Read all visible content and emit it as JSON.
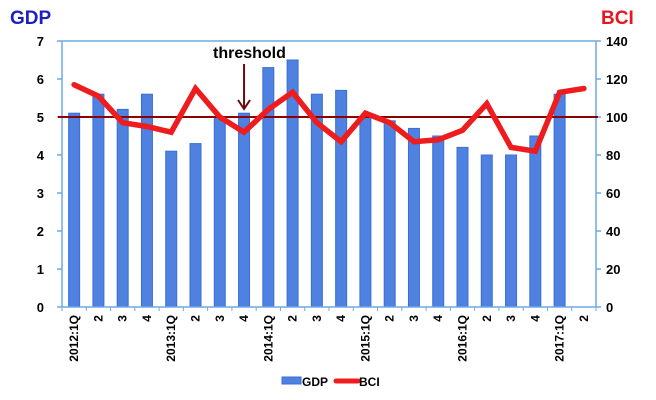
{
  "chart_data": {
    "type": "bar+line",
    "title": "",
    "left_axis_title": "GDP",
    "right_axis_title": "BCI",
    "left_axis_title_color": "#1f1fbf",
    "right_axis_title_color": "#e8141e",
    "xlabel": "",
    "ylabel_left": "GDP",
    "ylabel_right": "BCI",
    "ylim_left": [
      0,
      7
    ],
    "ylim_right": [
      0,
      140
    ],
    "left_ticks": [
      0,
      1,
      2,
      3,
      4,
      5,
      6,
      7
    ],
    "right_ticks": [
      0,
      20,
      40,
      60,
      80,
      100,
      120,
      140
    ],
    "categories": [
      "2012:1Q",
      "2",
      "3",
      "4",
      "2013:1Q",
      "2",
      "3",
      "4",
      "2014:1Q",
      "2",
      "3",
      "4",
      "2015:1Q",
      "2",
      "3",
      "4",
      "2016:1Q",
      "2",
      "3",
      "4",
      "2017:1Q",
      "2"
    ],
    "series": [
      {
        "name": "GDP",
        "type": "bar",
        "axis": "left",
        "color": "#4f81e0",
        "values": [
          5.1,
          5.6,
          5.2,
          5.6,
          4.1,
          4.3,
          5.0,
          5.1,
          6.3,
          6.5,
          5.6,
          5.7,
          5.0,
          4.9,
          4.7,
          4.5,
          4.2,
          4.0,
          4.0,
          4.5,
          5.6,
          null
        ]
      },
      {
        "name": "BCI",
        "type": "line",
        "axis": "right",
        "color": "#ee1c1c",
        "values": [
          117,
          111,
          97,
          95,
          92,
          115,
          100,
          92,
          104,
          113,
          97,
          87,
          102,
          97,
          87,
          88,
          93,
          107,
          84,
          82,
          113,
          115
        ]
      }
    ],
    "reference_line": {
      "axis": "right",
      "value": 100,
      "color": "#8b0000"
    },
    "annotations": [
      {
        "text": "threshold",
        "arrow_to_category_index": 7
      }
    ],
    "legend": {
      "position": "bottom",
      "entries": [
        "GDP",
        "BCI"
      ]
    },
    "grid": false,
    "axis_color": "#6fa8e8"
  }
}
